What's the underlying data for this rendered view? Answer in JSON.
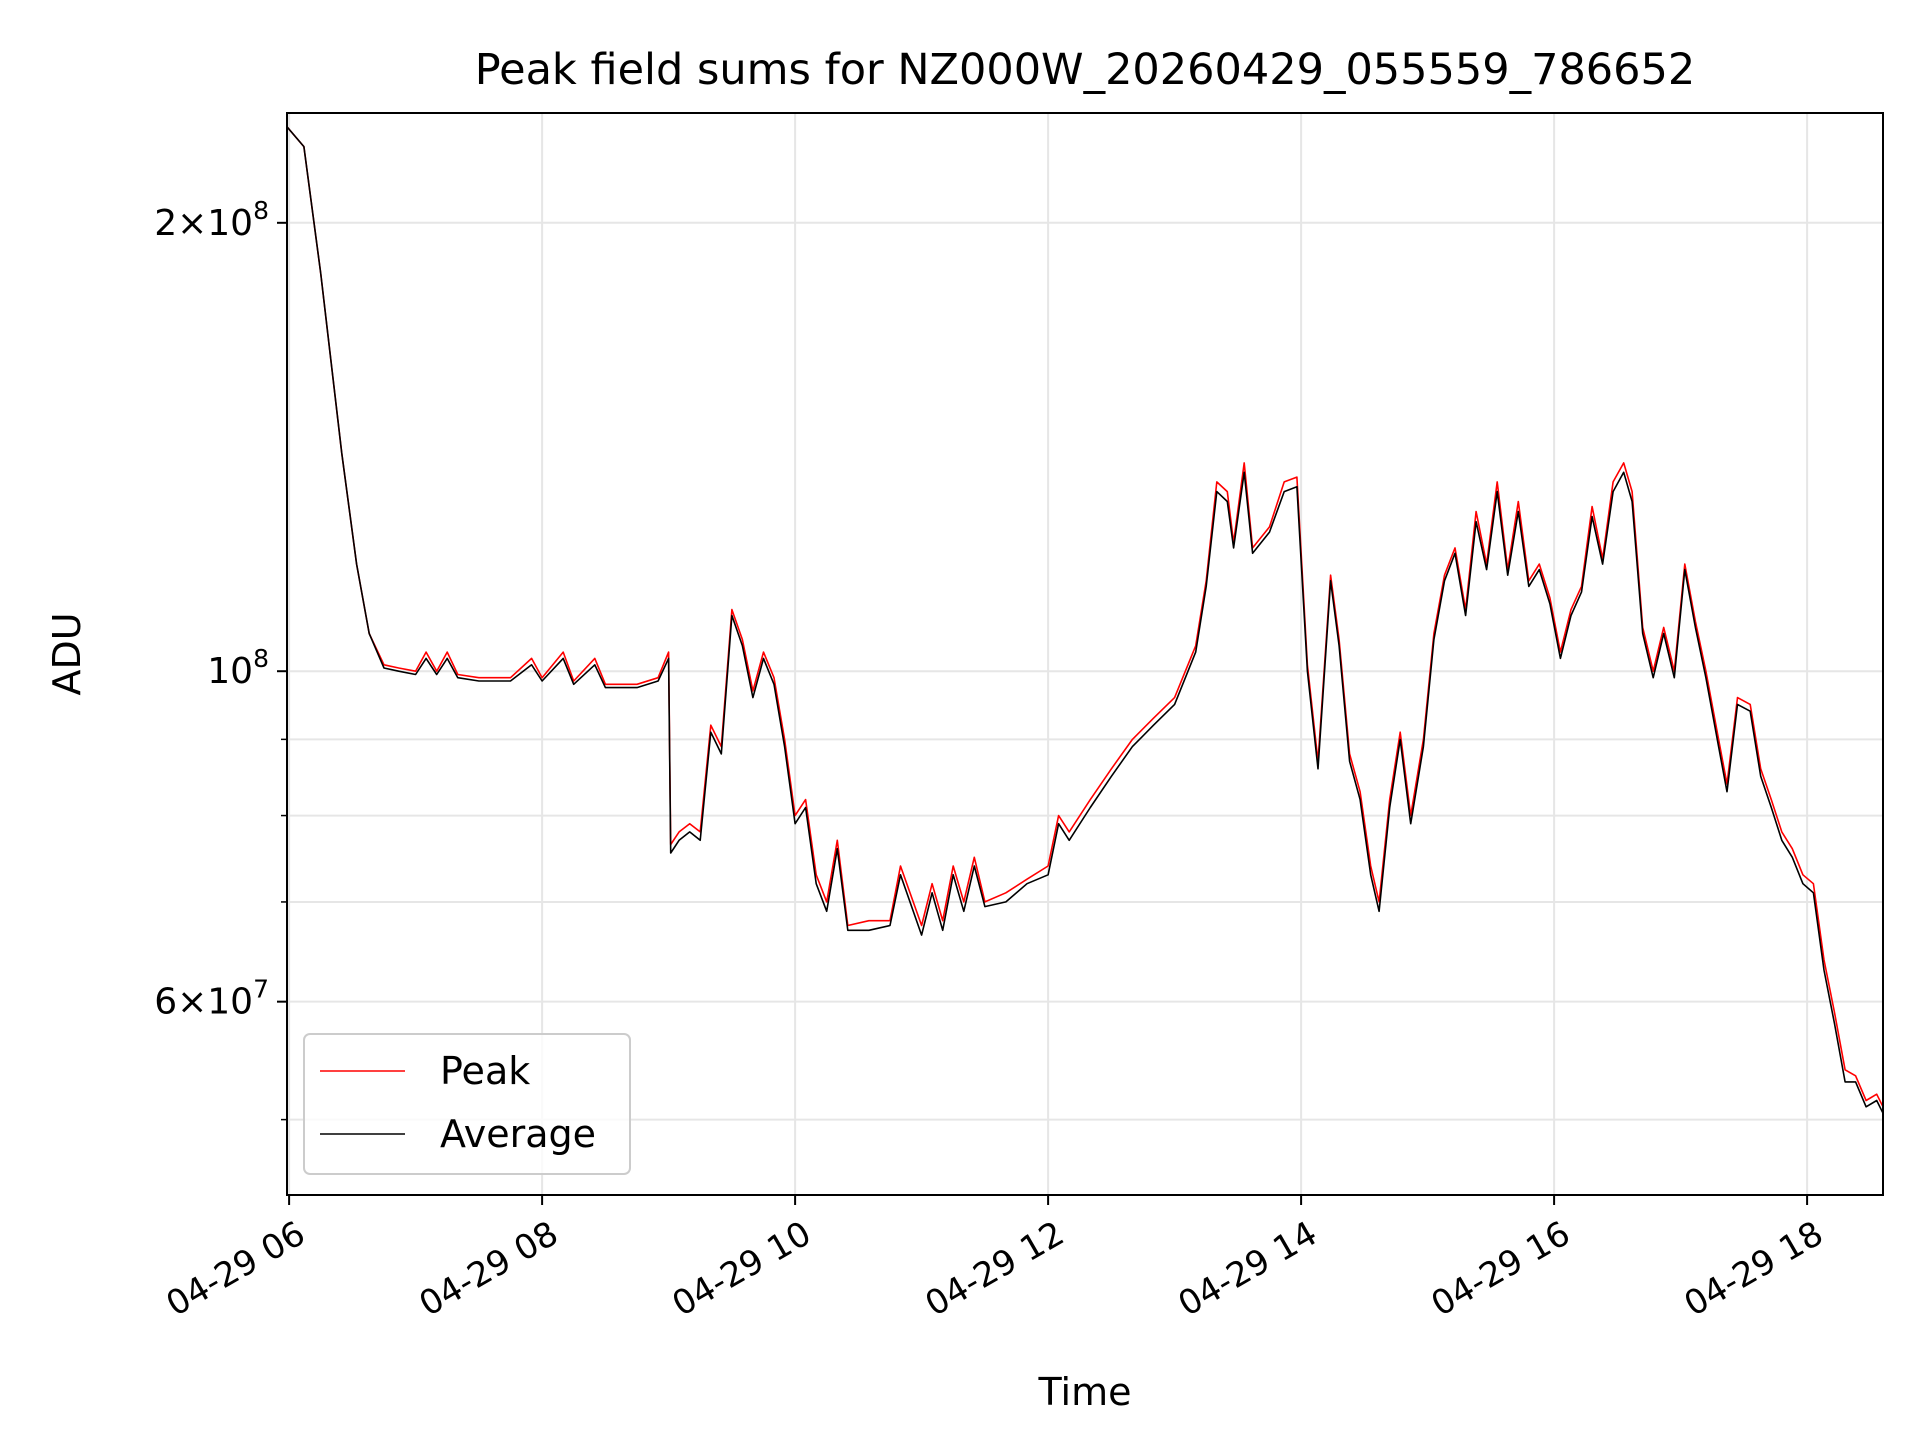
{
  "chart_data": {
    "type": "line",
    "title": "Peak field sums for NZ000W_20260429_055559_786652",
    "xlabel": "Time",
    "ylabel": "ADU",
    "y_scale": "log",
    "x_range": [
      "04-29 05:59",
      "04-29 18:36"
    ],
    "ylim": [
      44500000,
      237000000
    ],
    "grid": true,
    "legend_position": "lower-left",
    "x_ticks": [
      {
        "time": "06:00",
        "label": "04-29 06"
      },
      {
        "time": "08:00",
        "label": "04-29 08"
      },
      {
        "time": "10:00",
        "label": "04-29 10"
      },
      {
        "time": "12:00",
        "label": "04-29 12"
      },
      {
        "time": "14:00",
        "label": "04-29 14"
      },
      {
        "time": "16:00",
        "label": "04-29 16"
      },
      {
        "time": "18:00",
        "label": "04-29 18"
      }
    ],
    "y_major_ticks": [
      {
        "value": 200000000,
        "mantissa": "2",
        "times": "×",
        "base": "10",
        "exp": "8"
      },
      {
        "value": 100000000,
        "mantissa": "",
        "times": "",
        "base": "10",
        "exp": "8"
      },
      {
        "value": 60000000,
        "mantissa": "6",
        "times": "×",
        "base": "10",
        "exp": "7"
      }
    ],
    "y_minor_ticks": [
      50000000,
      70000000,
      80000000,
      90000000
    ],
    "series": [
      {
        "name": "Peak",
        "color": "#ff0000",
        "points": [
          [
            "05:59",
            232000000
          ],
          [
            "06:07",
            225000000
          ],
          [
            "06:15",
            185000000
          ],
          [
            "06:25",
            140000000
          ],
          [
            "06:32",
            118000000
          ],
          [
            "06:38",
            106000000
          ],
          [
            "06:45",
            101000000
          ],
          [
            "06:52",
            100500000
          ],
          [
            "07:00",
            100000000
          ],
          [
            "07:05",
            103000000
          ],
          [
            "07:10",
            100000000
          ],
          [
            "07:15",
            103000000
          ],
          [
            "07:20",
            99500000
          ],
          [
            "07:30",
            99000000
          ],
          [
            "07:45",
            99000000
          ],
          [
            "07:55",
            102000000
          ],
          [
            "08:00",
            99000000
          ],
          [
            "08:10",
            103000000
          ],
          [
            "08:15",
            98500000
          ],
          [
            "08:25",
            102000000
          ],
          [
            "08:30",
            98000000
          ],
          [
            "08:45",
            98000000
          ],
          [
            "08:55",
            99000000
          ],
          [
            "09:00",
            103000000
          ],
          [
            "09:01",
            76500000
          ],
          [
            "09:05",
            78000000
          ],
          [
            "09:10",
            79000000
          ],
          [
            "09:15",
            78000000
          ],
          [
            "09:20",
            92000000
          ],
          [
            "09:25",
            89000000
          ],
          [
            "09:30",
            110000000
          ],
          [
            "09:35",
            105000000
          ],
          [
            "09:40",
            97000000
          ],
          [
            "09:45",
            103000000
          ],
          [
            "09:50",
            99000000
          ],
          [
            "09:55",
            90000000
          ],
          [
            "10:00",
            80000000
          ],
          [
            "10:05",
            82000000
          ],
          [
            "10:10",
            73000000
          ],
          [
            "10:15",
            70000000
          ],
          [
            "10:20",
            77000000
          ],
          [
            "10:25",
            67500000
          ],
          [
            "10:35",
            68000000
          ],
          [
            "10:45",
            68000000
          ],
          [
            "10:50",
            74000000
          ],
          [
            "11:00",
            67500000
          ],
          [
            "11:05",
            72000000
          ],
          [
            "11:10",
            68000000
          ],
          [
            "11:15",
            74000000
          ],
          [
            "11:20",
            70000000
          ],
          [
            "11:25",
            75000000
          ],
          [
            "11:30",
            70000000
          ],
          [
            "11:40",
            71000000
          ],
          [
            "11:50",
            72500000
          ],
          [
            "12:00",
            74000000
          ],
          [
            "12:05",
            80000000
          ],
          [
            "12:10",
            78000000
          ],
          [
            "12:20",
            82000000
          ],
          [
            "12:30",
            86000000
          ],
          [
            "12:40",
            90000000
          ],
          [
            "12:50",
            93000000
          ],
          [
            "13:00",
            96000000
          ],
          [
            "13:10",
            104000000
          ],
          [
            "13:15",
            115000000
          ],
          [
            "13:20",
            134000000
          ],
          [
            "13:25",
            132000000
          ],
          [
            "13:28",
            122000000
          ],
          [
            "13:33",
            138000000
          ],
          [
            "13:37",
            121000000
          ],
          [
            "13:45",
            125000000
          ],
          [
            "13:52",
            134000000
          ],
          [
            "13:58",
            135000000
          ],
          [
            "14:03",
            101000000
          ],
          [
            "14:08",
            87000000
          ],
          [
            "14:14",
            116000000
          ],
          [
            "14:18",
            105000000
          ],
          [
            "14:23",
            88000000
          ],
          [
            "14:28",
            83000000
          ],
          [
            "14:33",
            74000000
          ],
          [
            "14:37",
            70000000
          ],
          [
            "14:42",
            82000000
          ],
          [
            "14:47",
            91000000
          ],
          [
            "14:52",
            80000000
          ],
          [
            "14:58",
            90000000
          ],
          [
            "15:03",
            106000000
          ],
          [
            "15:08",
            116000000
          ],
          [
            "15:13",
            121000000
          ],
          [
            "15:18",
            110000000
          ],
          [
            "15:23",
            128000000
          ],
          [
            "15:28",
            118000000
          ],
          [
            "15:33",
            134000000
          ],
          [
            "15:38",
            117000000
          ],
          [
            "15:43",
            130000000
          ],
          [
            "15:48",
            115000000
          ],
          [
            "15:53",
            118000000
          ],
          [
            "15:58",
            112000000
          ],
          [
            "16:03",
            103000000
          ],
          [
            "16:08",
            110000000
          ],
          [
            "16:13",
            114000000
          ],
          [
            "16:18",
            129000000
          ],
          [
            "16:23",
            119000000
          ],
          [
            "16:28",
            134000000
          ],
          [
            "16:33",
            138000000
          ],
          [
            "16:37",
            132000000
          ],
          [
            "16:42",
            107000000
          ],
          [
            "16:47",
            100000000
          ],
          [
            "16:52",
            107000000
          ],
          [
            "16:57",
            100000000
          ],
          [
            "17:02",
            118000000
          ],
          [
            "17:07",
            108000000
          ],
          [
            "17:12",
            100000000
          ],
          [
            "17:18",
            90000000
          ],
          [
            "17:22",
            84000000
          ],
          [
            "17:27",
            96000000
          ],
          [
            "17:33",
            95000000
          ],
          [
            "17:38",
            86000000
          ],
          [
            "17:43",
            82000000
          ],
          [
            "17:48",
            78000000
          ],
          [
            "17:53",
            76000000
          ],
          [
            "17:58",
            73000000
          ],
          [
            "18:03",
            72000000
          ],
          [
            "18:08",
            64000000
          ],
          [
            "18:13",
            59000000
          ],
          [
            "18:18",
            54000000
          ],
          [
            "18:23",
            53500000
          ],
          [
            "18:28",
            51500000
          ],
          [
            "18:33",
            52000000
          ],
          [
            "18:36",
            51000000
          ]
        ]
      },
      {
        "name": "Average",
        "color": "#000000",
        "points": [
          [
            "05:59",
            232000000
          ],
          [
            "06:07",
            225000000
          ],
          [
            "06:15",
            185000000
          ],
          [
            "06:25",
            140000000
          ],
          [
            "06:32",
            118000000
          ],
          [
            "06:38",
            106000000
          ],
          [
            "06:45",
            100500000
          ],
          [
            "06:52",
            100000000
          ],
          [
            "07:00",
            99500000
          ],
          [
            "07:05",
            102000000
          ],
          [
            "07:10",
            99500000
          ],
          [
            "07:15",
            102000000
          ],
          [
            "07:20",
            99000000
          ],
          [
            "07:30",
            98500000
          ],
          [
            "07:45",
            98500000
          ],
          [
            "07:55",
            101000000
          ],
          [
            "08:00",
            98500000
          ],
          [
            "08:10",
            102000000
          ],
          [
            "08:15",
            98000000
          ],
          [
            "08:25",
            101000000
          ],
          [
            "08:30",
            97500000
          ],
          [
            "08:45",
            97500000
          ],
          [
            "08:55",
            98500000
          ],
          [
            "09:00",
            102000000
          ],
          [
            "09:01",
            75500000
          ],
          [
            "09:05",
            77000000
          ],
          [
            "09:10",
            78000000
          ],
          [
            "09:15",
            77000000
          ],
          [
            "09:20",
            91000000
          ],
          [
            "09:25",
            88000000
          ],
          [
            "09:30",
            109000000
          ],
          [
            "09:35",
            104000000
          ],
          [
            "09:40",
            96000000
          ],
          [
            "09:45",
            102000000
          ],
          [
            "09:50",
            98000000
          ],
          [
            "09:55",
            89000000
          ],
          [
            "10:00",
            79000000
          ],
          [
            "10:05",
            81000000
          ],
          [
            "10:10",
            72000000
          ],
          [
            "10:15",
            69000000
          ],
          [
            "10:20",
            76000000
          ],
          [
            "10:25",
            67000000
          ],
          [
            "10:35",
            67000000
          ],
          [
            "10:45",
            67500000
          ],
          [
            "10:50",
            73000000
          ],
          [
            "11:00",
            66500000
          ],
          [
            "11:05",
            71000000
          ],
          [
            "11:10",
            67000000
          ],
          [
            "11:15",
            73000000
          ],
          [
            "11:20",
            69000000
          ],
          [
            "11:25",
            74000000
          ],
          [
            "11:30",
            69500000
          ],
          [
            "11:40",
            70000000
          ],
          [
            "11:50",
            72000000
          ],
          [
            "12:00",
            73000000
          ],
          [
            "12:05",
            79000000
          ],
          [
            "12:10",
            77000000
          ],
          [
            "12:20",
            81000000
          ],
          [
            "12:30",
            85000000
          ],
          [
            "12:40",
            89000000
          ],
          [
            "12:50",
            92000000
          ],
          [
            "13:00",
            95000000
          ],
          [
            "13:10",
            103000000
          ],
          [
            "13:15",
            114000000
          ],
          [
            "13:20",
            132000000
          ],
          [
            "13:25",
            130000000
          ],
          [
            "13:28",
            121000000
          ],
          [
            "13:33",
            136000000
          ],
          [
            "13:37",
            120000000
          ],
          [
            "13:45",
            124000000
          ],
          [
            "13:52",
            132000000
          ],
          [
            "13:58",
            133000000
          ],
          [
            "14:03",
            100000000
          ],
          [
            "14:08",
            86000000
          ],
          [
            "14:14",
            115000000
          ],
          [
            "14:18",
            104000000
          ],
          [
            "14:23",
            87000000
          ],
          [
            "14:28",
            82000000
          ],
          [
            "14:33",
            73000000
          ],
          [
            "14:37",
            69000000
          ],
          [
            "14:42",
            81000000
          ],
          [
            "14:47",
            90000000
          ],
          [
            "14:52",
            79000000
          ],
          [
            "14:58",
            89000000
          ],
          [
            "15:03",
            105000000
          ],
          [
            "15:08",
            115000000
          ],
          [
            "15:13",
            120000000
          ],
          [
            "15:18",
            109000000
          ],
          [
            "15:23",
            126000000
          ],
          [
            "15:28",
            117000000
          ],
          [
            "15:33",
            132000000
          ],
          [
            "15:38",
            116000000
          ],
          [
            "15:43",
            128000000
          ],
          [
            "15:48",
            114000000
          ],
          [
            "15:53",
            117000000
          ],
          [
            "15:58",
            111000000
          ],
          [
            "16:03",
            102000000
          ],
          [
            "16:08",
            109000000
          ],
          [
            "16:13",
            113000000
          ],
          [
            "16:18",
            127000000
          ],
          [
            "16:23",
            118000000
          ],
          [
            "16:28",
            132000000
          ],
          [
            "16:33",
            136000000
          ],
          [
            "16:37",
            130000000
          ],
          [
            "16:42",
            106000000
          ],
          [
            "16:47",
            99000000
          ],
          [
            "16:52",
            106000000
          ],
          [
            "16:57",
            99000000
          ],
          [
            "17:02",
            117000000
          ],
          [
            "17:07",
            107000000
          ],
          [
            "17:12",
            99000000
          ],
          [
            "17:18",
            89000000
          ],
          [
            "17:22",
            83000000
          ],
          [
            "17:27",
            95000000
          ],
          [
            "17:33",
            94000000
          ],
          [
            "17:38",
            85000000
          ],
          [
            "17:43",
            81000000
          ],
          [
            "17:48",
            77000000
          ],
          [
            "17:53",
            75000000
          ],
          [
            "17:58",
            72000000
          ],
          [
            "18:03",
            71000000
          ],
          [
            "18:08",
            63000000
          ],
          [
            "18:13",
            58000000
          ],
          [
            "18:18",
            53000000
          ],
          [
            "18:23",
            53000000
          ],
          [
            "18:28",
            51000000
          ],
          [
            "18:33",
            51500000
          ],
          [
            "18:36",
            50500000
          ]
        ]
      }
    ]
  }
}
